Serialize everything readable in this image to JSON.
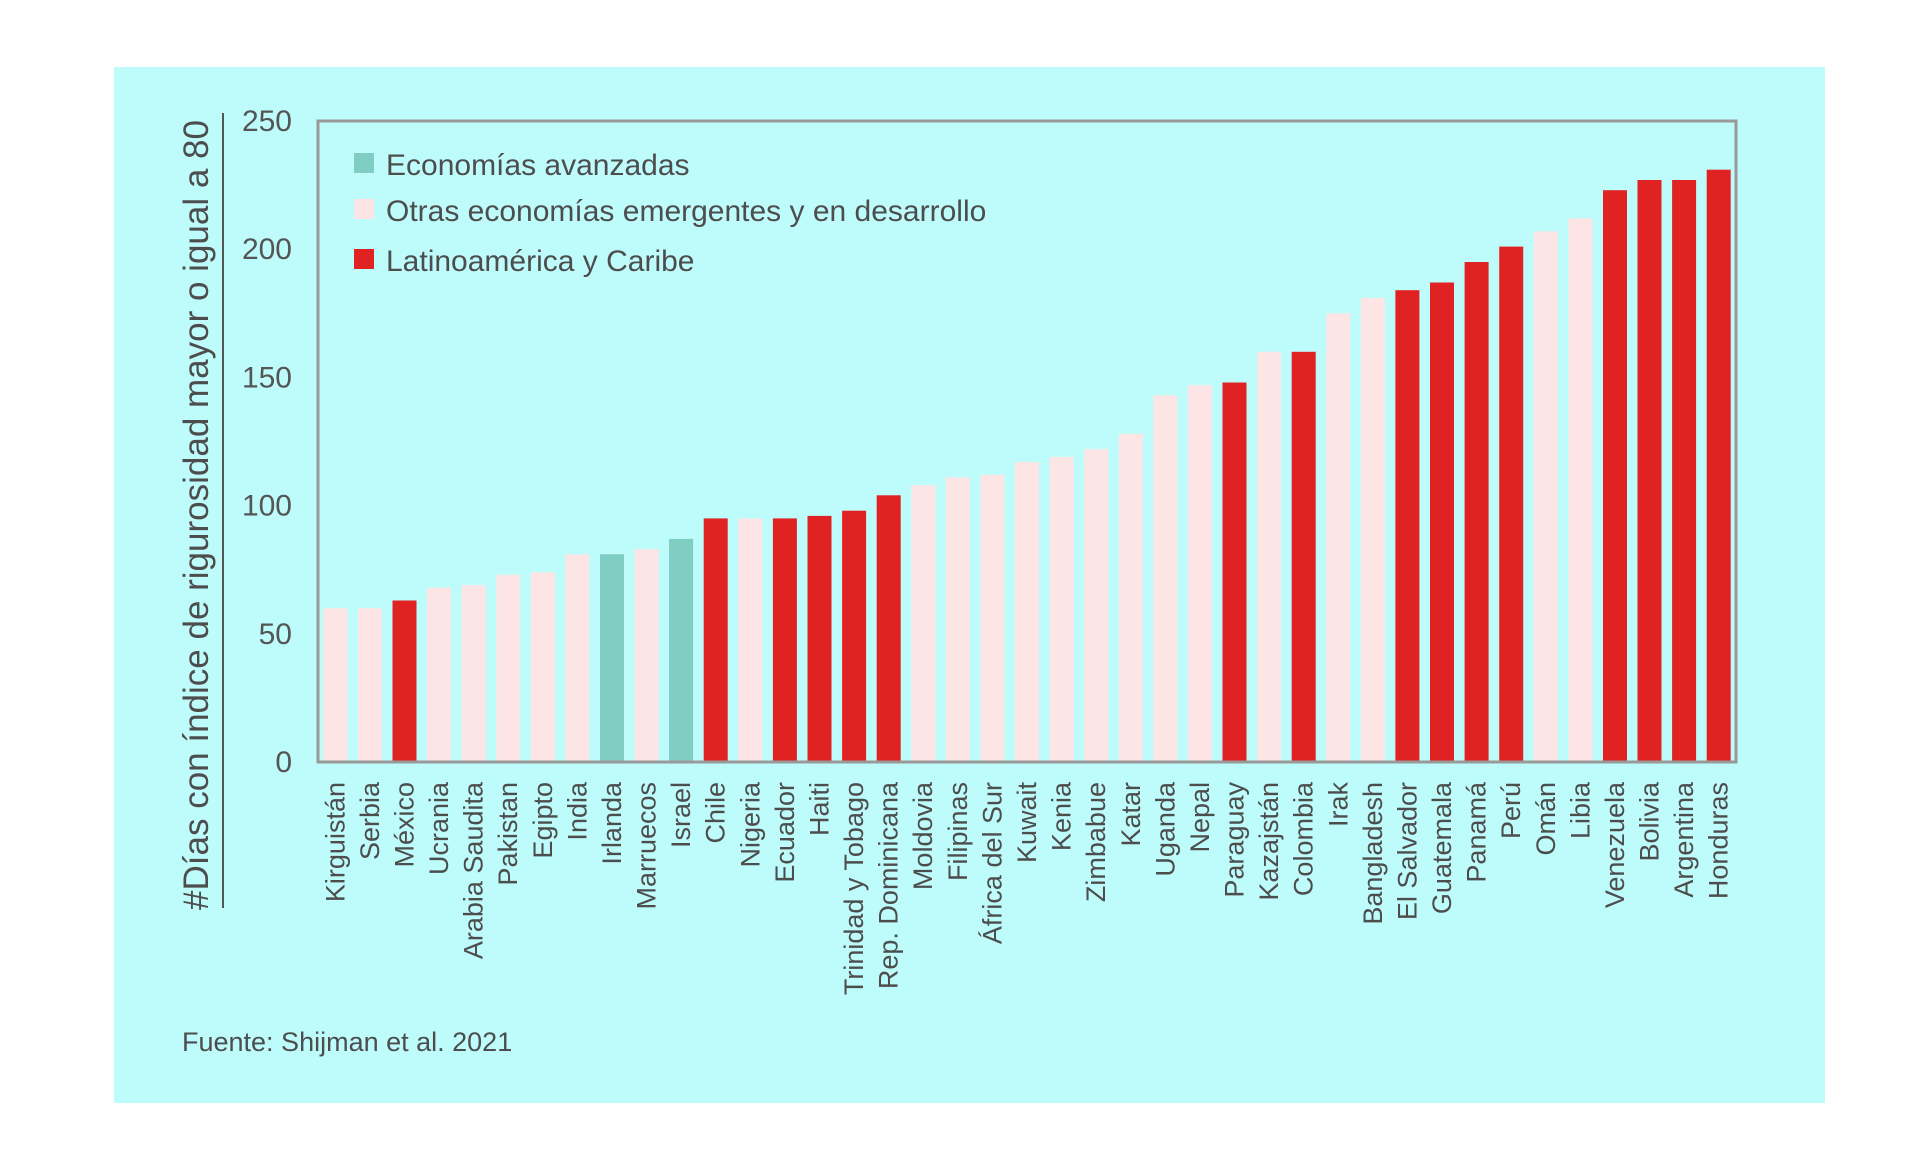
{
  "chart_data": {
    "type": "bar",
    "ylabel": "#Días con índice de rigurosidad mayor o igual a 80",
    "ylim": [
      0,
      250
    ],
    "yticks": [
      0,
      50,
      100,
      150,
      200,
      250
    ],
    "legend": [
      {
        "key": "avanzadas",
        "label": "Economías avanzadas",
        "color": "#7fcdc3"
      },
      {
        "key": "emergentes",
        "label": "Otras economías emergentes y en desarrollo",
        "color": "#fde5e6"
      },
      {
        "key": "latam",
        "label": "Latinoamérica y Caribe",
        "color": "#e02222"
      }
    ],
    "legend_position": "top-left",
    "categories": [
      "Kirguistán",
      "Serbia",
      "México",
      "Ucrania",
      "Arabia Saudita",
      "Pakistan",
      "Egipto",
      "India",
      "Irlanda",
      "Marruecos",
      "Israel",
      "Chile",
      "Nigeria",
      "Ecuador",
      "Haiti",
      "Trinidad y Tobago",
      "Rep. Dominicana",
      "Moldovia",
      "Filipinas",
      "África del Sur",
      "Kuwait",
      "Kenia",
      "Zimbabue",
      "Katar",
      "Uganda",
      "Nepal",
      "Paraguay",
      "Kazajstán",
      "Colombia",
      "Irak",
      "Bangladesh",
      "El Salvador",
      "Guatemala",
      "Panamá",
      "Perú",
      "Omán",
      "Libia",
      "Venezuela",
      "Bolivia",
      "Argentina",
      "Honduras"
    ],
    "values": [
      60,
      60,
      63,
      68,
      69,
      73,
      74,
      81,
      81,
      83,
      87,
      95,
      95,
      95,
      96,
      98,
      104,
      108,
      111,
      112,
      117,
      119,
      122,
      128,
      143,
      147,
      148,
      160,
      160,
      175,
      181,
      184,
      187,
      195,
      201,
      207,
      212,
      223,
      227,
      227,
      231
    ],
    "groups": [
      "emergentes",
      "emergentes",
      "latam",
      "emergentes",
      "emergentes",
      "emergentes",
      "emergentes",
      "emergentes",
      "avanzadas",
      "emergentes",
      "avanzadas",
      "latam",
      "emergentes",
      "latam",
      "latam",
      "latam",
      "latam",
      "emergentes",
      "emergentes",
      "emergentes",
      "emergentes",
      "emergentes",
      "emergentes",
      "emergentes",
      "emergentes",
      "emergentes",
      "latam",
      "emergentes",
      "latam",
      "emergentes",
      "emergentes",
      "latam",
      "latam",
      "latam",
      "latam",
      "emergentes",
      "emergentes",
      "latam",
      "latam",
      "latam",
      "latam"
    ]
  },
  "source": "Fuente: Shijman et al. 2021"
}
